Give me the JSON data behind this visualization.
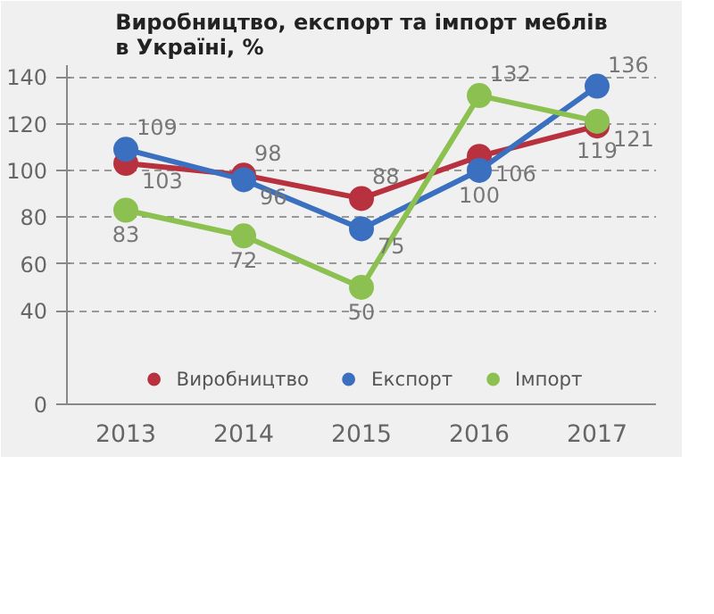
{
  "chart_data": {
    "type": "line",
    "title": "Виробництво, експорт та імпорт меблів\nв Україні, %",
    "categories": [
      "2013",
      "2014",
      "2015",
      "2016",
      "2017"
    ],
    "series": [
      {
        "name": "Виробництво",
        "color": "#b8313f",
        "values": [
          103,
          98,
          88,
          106,
          119
        ]
      },
      {
        "name": "Експорт",
        "color": "#3b6fbf",
        "values": [
          109,
          96,
          75,
          100,
          136
        ]
      },
      {
        "name": "Імпорт",
        "color": "#8cc152",
        "values": [
          83,
          72,
          50,
          132,
          121
        ]
      }
    ],
    "ylim": [
      0,
      145
    ],
    "yticks": [
      0,
      40,
      60,
      80,
      100,
      120,
      140
    ],
    "grid": "y",
    "legend": "bottom",
    "marker": "circle",
    "line_style": "solid",
    "data_labels": true
  }
}
